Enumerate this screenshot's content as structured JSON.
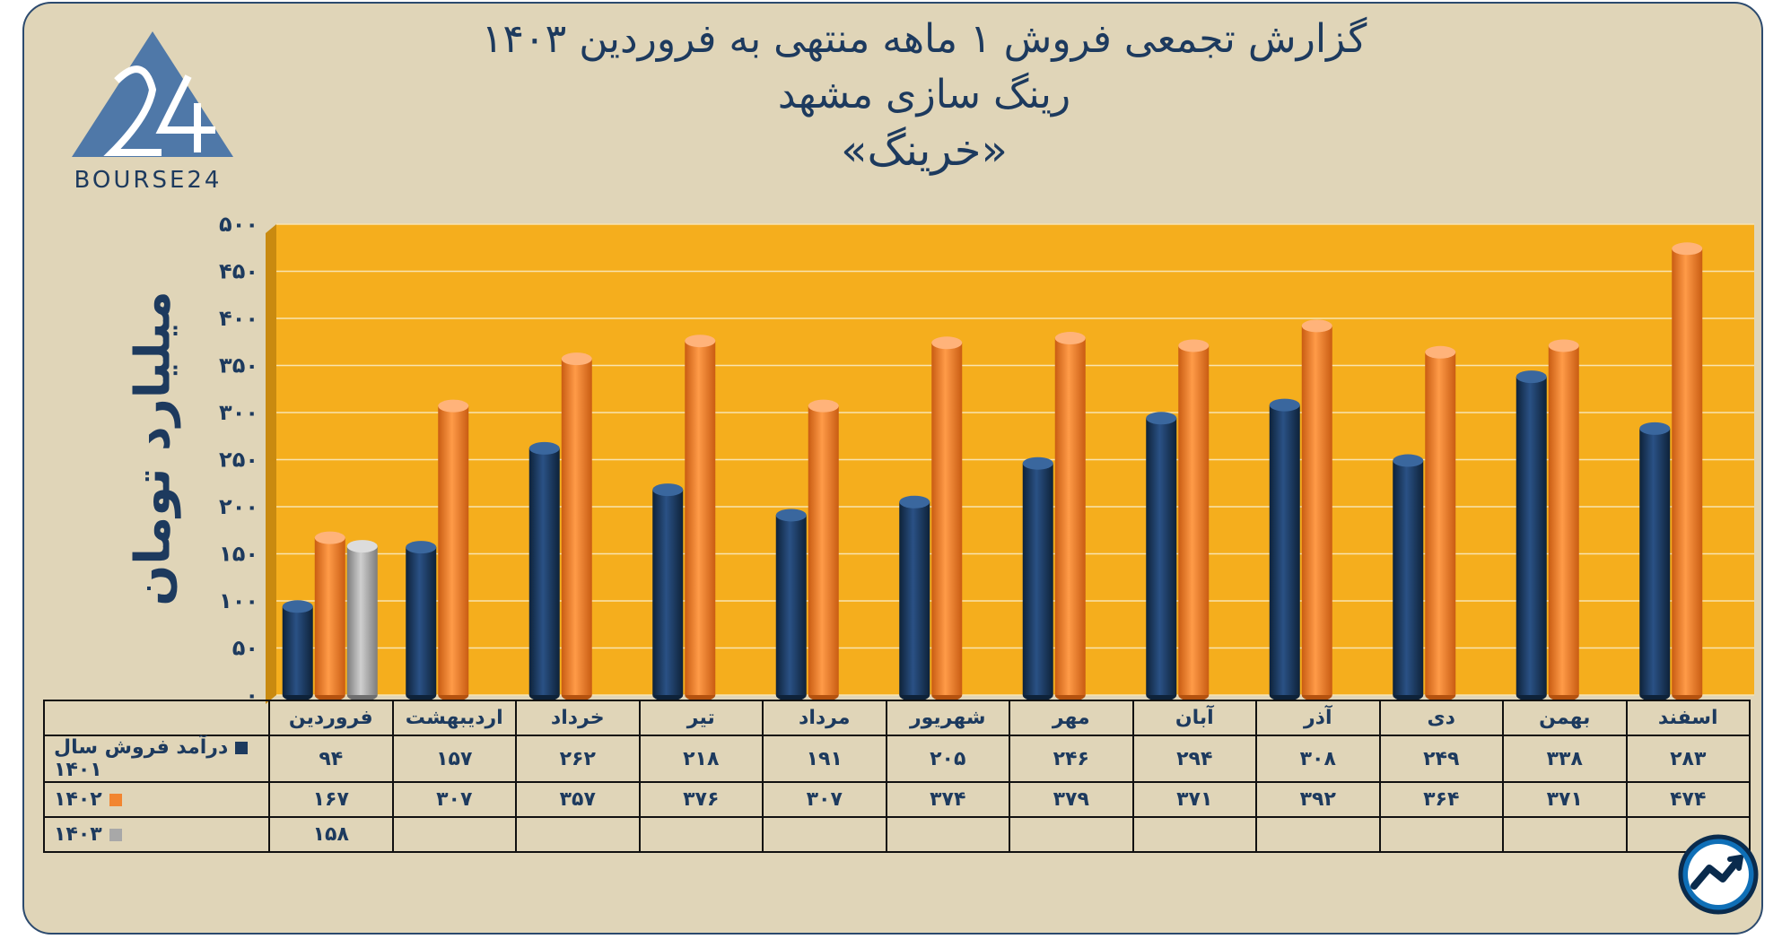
{
  "title_line1": "گزارش تجمعی فروش ۱ ماهه منتهی به فروردین ۱۴۰۳",
  "title_line2": "رینگ سازی مشهد",
  "title_line3": "«خرینگ»",
  "logo_text": "BOURSE24",
  "colors": {
    "background": "#e0d5b8",
    "plot": "#f5ae1d",
    "series_1401": "#1d3a5e",
    "series_1402": "#f28530",
    "series_1403": "#a8a8a8",
    "text": "#1d3a5e"
  },
  "chart_data": {
    "type": "bar",
    "title": "گزارش تجمعی فروش ۱ ماهه منتهی به فروردین ۱۴۰۳",
    "ylabel": "میلیارد تومان",
    "xlabel": "",
    "ylim": [
      0,
      500
    ],
    "yticks": [
      "۰",
      "۵۰",
      "۱۰۰",
      "۱۵۰",
      "۲۰۰",
      "۲۵۰",
      "۳۰۰",
      "۳۵۰",
      "۴۰۰",
      "۴۵۰",
      "۵۰۰"
    ],
    "categories": [
      "فروردین",
      "اردیبهشت",
      "خرداد",
      "تیر",
      "مرداد",
      "شهریور",
      "مهر",
      "آبان",
      "آذر",
      "دی",
      "بهمن",
      "اسفند"
    ],
    "series": [
      {
        "name": "درآمد فروش سال ۱۴۰۱",
        "color": "#1d3a5e",
        "values": [
          94,
          157,
          262,
          218,
          191,
          205,
          246,
          294,
          308,
          249,
          338,
          283
        ],
        "labels": [
          "۹۴",
          "۱۵۷",
          "۲۶۲",
          "۲۱۸",
          "۱۹۱",
          "۲۰۵",
          "۲۴۶",
          "۲۹۴",
          "۳۰۸",
          "۲۴۹",
          "۳۳۸",
          "۲۸۳"
        ]
      },
      {
        "name": "۱۴۰۲",
        "color": "#f28530",
        "values": [
          167,
          307,
          357,
          376,
          307,
          374,
          379,
          371,
          392,
          364,
          371,
          474
        ],
        "labels": [
          "۱۶۷",
          "۳۰۷",
          "۳۵۷",
          "۳۷۶",
          "۳۰۷",
          "۳۷۴",
          "۳۷۹",
          "۳۷۱",
          "۳۹۲",
          "۳۶۴",
          "۳۷۱",
          "۴۷۴"
        ]
      },
      {
        "name": "۱۴۰۳",
        "color": "#a8a8a8",
        "values": [
          158,
          null,
          null,
          null,
          null,
          null,
          null,
          null,
          null,
          null,
          null,
          null
        ],
        "labels": [
          "۱۵۸",
          "",
          "",
          "",
          "",
          "",
          "",
          "",
          "",
          "",
          "",
          ""
        ]
      }
    ],
    "legend": "table-below"
  }
}
